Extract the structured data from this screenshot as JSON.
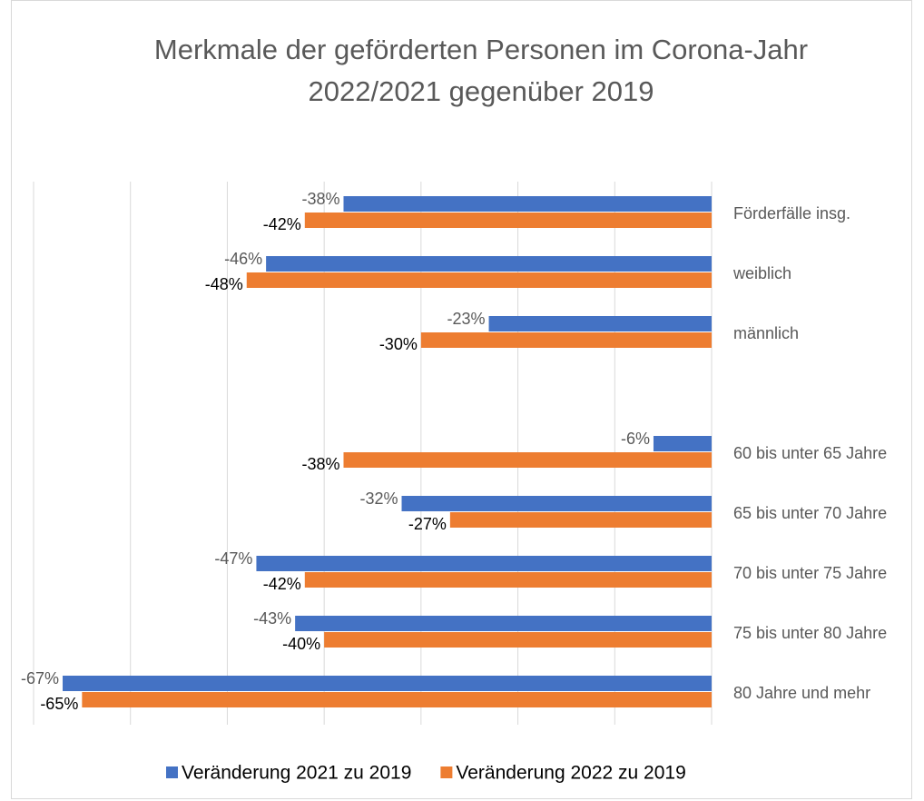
{
  "chart_data": {
    "type": "hbar",
    "title": [
      "Merkmale der geförderten Personen im Corona-Jahr",
      "2022/2021 gegenüber 2019"
    ],
    "categories": [
      "Förderfälle insg.",
      "weiblich",
      "männlich",
      null,
      "60 bis unter 65 Jahre",
      "65 bis unter 70 Jahre",
      "70 bis unter 75 Jahre",
      "75 bis unter 80 Jahre",
      "80 Jahre und mehr"
    ],
    "series": [
      {
        "name": "Veränderung 2021 zu 2019",
        "color": "#4472c4",
        "values": [
          -38,
          -46,
          -23,
          null,
          -6,
          -32,
          -47,
          -43,
          -67
        ],
        "value_labels": [
          "-38%",
          "-46%",
          "-23%",
          null,
          "-6%",
          "-32%",
          "-47%",
          "-43%",
          "-67%"
        ]
      },
      {
        "name": "Veränderung 2022 zu 2019",
        "color": "#ed7d31",
        "values": [
          -42,
          -48,
          -30,
          null,
          -38,
          -27,
          -42,
          -40,
          -65
        ],
        "value_labels": [
          "-42%",
          "-48%",
          "-30%",
          null,
          "-38%",
          "-27%",
          "-42%",
          "-40%",
          "-65%"
        ]
      }
    ],
    "xlim": [
      -70,
      0
    ],
    "xticks": [
      -70,
      -60,
      -50,
      -40,
      -30,
      -20,
      -10,
      0
    ],
    "grid": true,
    "legend": "bottom"
  }
}
